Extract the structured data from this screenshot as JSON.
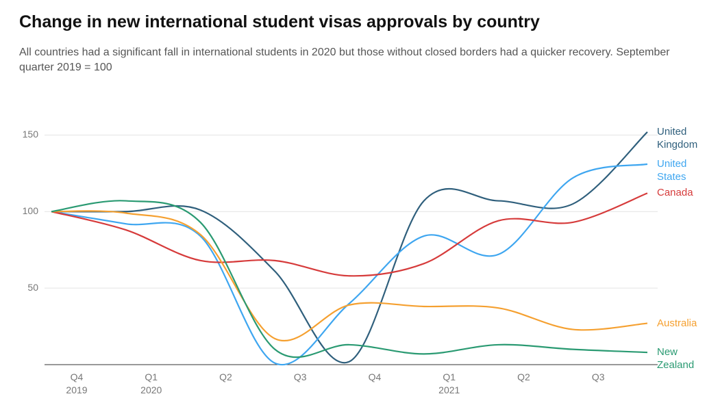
{
  "chart_data": {
    "type": "line",
    "title": "Change in new international student visas approvals by country",
    "subtitle": "All countries had a significant fall in international students in 2020 but those without closed borders had a quicker recovery. September quarter 2019 = 100",
    "categories": [
      "Q4 2019",
      "Q1 2020",
      "Q2",
      "Q3",
      "Q4",
      "Q1 2021",
      "Q2",
      "Q3",
      null
    ],
    "series": [
      {
        "name": "United Kingdom",
        "color": "#2f5f7c",
        "values": [
          100,
          100,
          101,
          61,
          2,
          107,
          107,
          105,
          152
        ]
      },
      {
        "name": "United States",
        "color": "#3ea6f0",
        "values": [
          100,
          92,
          84,
          1,
          40,
          84,
          72,
          122,
          131
        ]
      },
      {
        "name": "Canada",
        "color": "#d63b3b",
        "values": [
          100,
          88,
          68,
          68,
          58,
          66,
          94,
          93,
          112
        ]
      },
      {
        "name": "Australia",
        "color": "#f5a030",
        "values": [
          100,
          99,
          85,
          17,
          39,
          38,
          37,
          23,
          27
        ]
      },
      {
        "name": "New Zealand",
        "color": "#2a9a72",
        "values": [
          100,
          107,
          93,
          10,
          13,
          7,
          13,
          10,
          8
        ]
      }
    ],
    "ylim": [
      0,
      160
    ],
    "yticks": [
      50,
      100,
      150
    ],
    "grid": true
  }
}
